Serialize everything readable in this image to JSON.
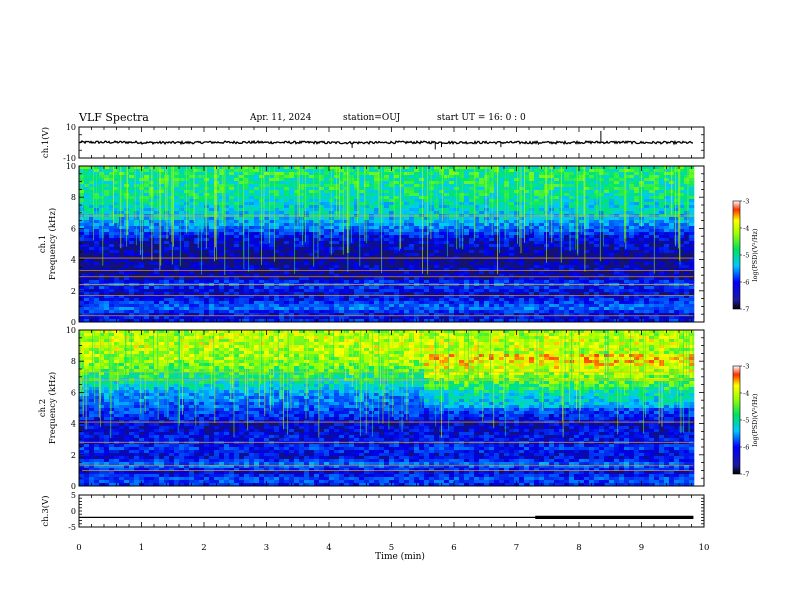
{
  "header": {
    "title": "VLF Spectra",
    "date": "Apr. 11, 2024",
    "station": "station=OUJ",
    "start_ut": "start  UT =   16: 0  : 0"
  },
  "chart_data": [
    {
      "type": "line",
      "panel": "ch1-waveform",
      "ylabel": "ch.1(V)",
      "ylim": [
        -10,
        10
      ],
      "y_ticks": [
        "10",
        "-10"
      ],
      "xlim": [
        0,
        10
      ],
      "x_data_end": 9.83,
      "baseline": 0,
      "series": [
        {
          "values": [
            0.4,
            -0.2,
            0.3,
            0.1,
            -0.3,
            0.2,
            0.0,
            -0.1,
            0.3,
            -0.2
          ]
        }
      ],
      "spikes": [
        {
          "x": 4.37,
          "y": -3.5
        },
        {
          "x": 5.7,
          "y": -4.5
        },
        {
          "x": 5.8,
          "y": -3.0
        },
        {
          "x": 6.75,
          "y": -3.0
        },
        {
          "x": 7.35,
          "y": -1.5
        },
        {
          "x": 8.35,
          "y": 7.5
        }
      ]
    },
    {
      "type": "heatmap",
      "panel": "ch1-spectrogram",
      "ylabel": "ch.1\nFrequency  (kHz)",
      "ylim": [
        0,
        10
      ],
      "y_ticks": [
        "0",
        "2",
        "4",
        "6",
        "8",
        "10"
      ],
      "xlim": [
        0,
        10
      ],
      "x_data_end": 9.83,
      "colorbar": {
        "label": "log(PSD)(V²/Hz)",
        "range": [
          -7,
          -3
        ],
        "ticks": [
          "-3",
          "-4",
          "-5",
          "-6",
          "-7"
        ]
      },
      "profile": {
        "freqs_khz": [
          0,
          0.5,
          1.0,
          1.5,
          2.0,
          2.5,
          3.0,
          3.5,
          4.0,
          4.5,
          5.0,
          5.5,
          6.0,
          6.5,
          7.0,
          7.5,
          8.0,
          8.5,
          9.0,
          9.5,
          10.0
        ],
        "log_psd": [
          -6.2,
          -6.5,
          -5.8,
          -6.3,
          -6.6,
          -6.0,
          -6.8,
          -6.7,
          -6.9,
          -6.8,
          -6.6,
          -6.5,
          -5.9,
          -5.5,
          -5.3,
          -5.2,
          -5.0,
          -4.9,
          -4.9,
          -4.8,
          -4.8
        ]
      },
      "tones_khz": [
        0.4,
        1.7,
        2.4,
        2.9,
        3.3,
        4.1,
        6.8
      ]
    },
    {
      "type": "heatmap",
      "panel": "ch2-spectrogram",
      "ylabel": "ch.2\nFrequency  (kHz)",
      "ylim": [
        0,
        10
      ],
      "y_ticks": [
        "0",
        "2",
        "4",
        "6",
        "8",
        "10"
      ],
      "xlim": [
        0,
        10
      ],
      "x_data_end": 9.83,
      "colorbar": {
        "label": "log(PSD)(V²/Hz)",
        "range": [
          -7,
          -3
        ],
        "ticks": [
          "-3",
          "-4",
          "-5",
          "-6",
          "-7"
        ]
      },
      "profile": {
        "freqs_khz": [
          0,
          0.5,
          1.0,
          1.5,
          2.0,
          2.5,
          3.0,
          3.5,
          4.0,
          4.5,
          5.0,
          5.5,
          6.0,
          6.5,
          7.0,
          7.5,
          8.0,
          8.5,
          9.0,
          9.5,
          10.0
        ],
        "log_psd": [
          -6.3,
          -6.0,
          -6.5,
          -5.8,
          -6.6,
          -6.2,
          -6.4,
          -6.5,
          -6.6,
          -6.3,
          -6.0,
          -5.8,
          -5.6,
          -5.2,
          -4.9,
          -4.6,
          -4.3,
          -4.2,
          -4.1,
          -4.1,
          -4.2
        ]
      },
      "tones_khz": [
        1.0,
        1.3,
        2.8,
        4.1,
        6.8,
        7.3
      ]
    },
    {
      "type": "line",
      "panel": "ch3-trace",
      "ylabel": "ch.3(V)",
      "ylim": [
        -5,
        5
      ],
      "y_ticks": [
        "5",
        "0",
        "-5"
      ],
      "xlim": [
        0,
        10
      ],
      "xlabel": "Time  (min)",
      "x_ticks": [
        "0",
        "1",
        "2",
        "3",
        "4",
        "5",
        "6",
        "7",
        "8",
        "9",
        "10"
      ],
      "series": [
        {
          "x": [
            0,
            9.83
          ],
          "values": [
            -2.0,
            -2.0
          ]
        }
      ],
      "thick_segment": {
        "x": [
          7.3,
          9.83
        ],
        "y": -2.0
      }
    }
  ]
}
